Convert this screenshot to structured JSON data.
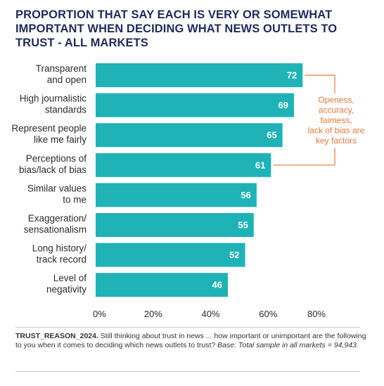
{
  "chart_data": {
    "type": "bar",
    "orientation": "horizontal",
    "title": "PROPORTION THAT SAY EACH IS VERY OR SOMEWHAT IMPORTANT WHEN DECIDING WHAT NEWS OUTLETS TO TRUST - ALL MARKETS",
    "categories": [
      [
        "Transparent",
        "and open"
      ],
      [
        "High journalistic",
        "standards"
      ],
      [
        "Represent people",
        "like me fairly"
      ],
      [
        "Perceptions of",
        "bias/lack of bias"
      ],
      [
        "Similar values",
        "to me"
      ],
      [
        "Exaggeration/",
        "sensationalism"
      ],
      [
        "Long history/",
        "track record"
      ],
      [
        "Level of",
        "negativity"
      ]
    ],
    "values": [
      72,
      69,
      65,
      61,
      56,
      55,
      52,
      46
    ],
    "xlim": [
      0,
      80
    ],
    "xticks": [
      "0%",
      "20%",
      "40%",
      "60%",
      "80%"
    ],
    "grid": false,
    "bar_color": "#1fb3b7",
    "annotation": {
      "lines": [
        "Openess,",
        "accuracy,",
        "fairness,",
        "lack of bias are",
        "key factors"
      ],
      "color": "#e8783a",
      "brackets_categories": [
        0,
        3
      ]
    }
  },
  "footnote": {
    "code": "TRUST_REASON_2024.",
    "question": " Still thinking about trust in news ... how important or unimportant are the following to you when it comes to deciding which news outlets to trust? ",
    "base": "Base: Total sample in all markets = 94,943."
  }
}
